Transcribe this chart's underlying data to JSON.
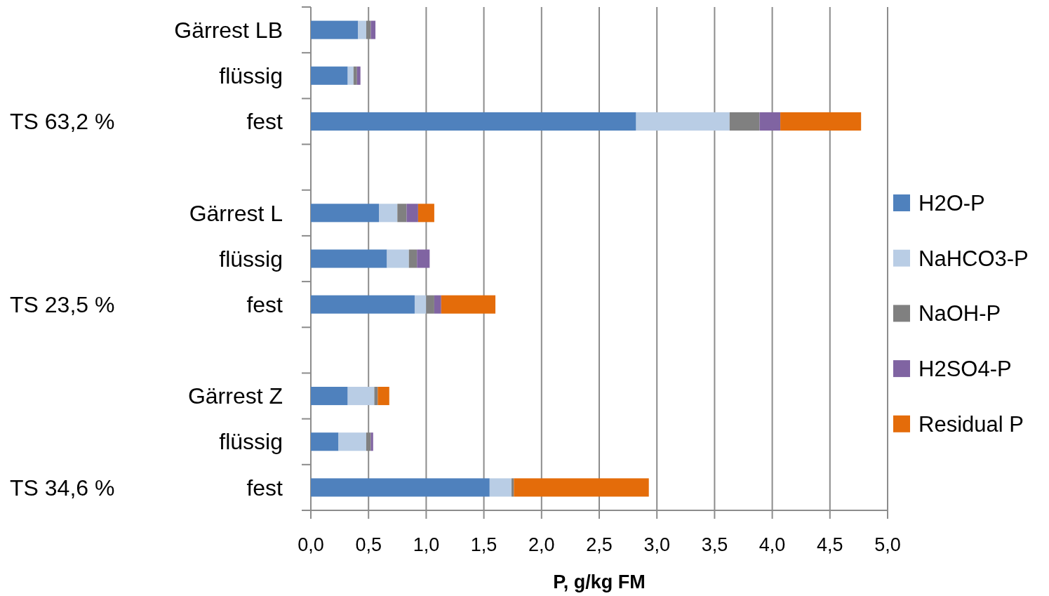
{
  "chart_data": {
    "type": "bar",
    "orientation": "horizontal",
    "stacked": true,
    "categories": [
      "Gärrest LB",
      "flüssig",
      "fest",
      null,
      "Gärrest L",
      "flüssig",
      "fest",
      null,
      "Gärrest Z",
      "flüssig",
      "fest"
    ],
    "series": [
      {
        "name": "H2O-P",
        "color": "#4f81bd",
        "values": [
          0.41,
          0.32,
          2.82,
          null,
          0.59,
          0.66,
          0.9,
          null,
          0.32,
          0.24,
          1.55
        ]
      },
      {
        "name": "NaHCO3-P",
        "color": "#b9cde5",
        "values": [
          0.07,
          0.05,
          0.81,
          null,
          0.16,
          0.19,
          0.1,
          null,
          0.23,
          0.24,
          0.19
        ]
      },
      {
        "name": "NaOH-P",
        "color": "#808080",
        "values": [
          0.04,
          0.03,
          0.26,
          null,
          0.08,
          0.07,
          0.07,
          null,
          0.03,
          0.04,
          0.02
        ]
      },
      {
        "name": "H2SO4-P",
        "color": "#8064a2",
        "values": [
          0.04,
          0.03,
          0.18,
          null,
          0.1,
          0.11,
          0.06,
          null,
          0,
          0.02,
          0
        ]
      },
      {
        "name": "Residual P",
        "color": "#e46c0a",
        "values": [
          0,
          0,
          0.7,
          null,
          0.14,
          0,
          0.47,
          null,
          0.1,
          0,
          1.17
        ]
      }
    ],
    "xlabel": "P, g/kg FM",
    "xlim": [
      0,
      5
    ],
    "xticks": [
      {
        "value": 0,
        "label": "0,0"
      },
      {
        "value": 0.5,
        "label": "0,5"
      },
      {
        "value": 1,
        "label": "1,0"
      },
      {
        "value": 1.5,
        "label": "1,5"
      },
      {
        "value": 2,
        "label": "2,0"
      },
      {
        "value": 2.5,
        "label": "2,5"
      },
      {
        "value": 3,
        "label": "3,0"
      },
      {
        "value": 3.5,
        "label": "3,5"
      },
      {
        "value": 4,
        "label": "4,0"
      },
      {
        "value": 4.5,
        "label": "4,5"
      },
      {
        "value": 5,
        "label": "5,0"
      }
    ],
    "grid": "x",
    "legend": "right",
    "annotations": [
      "TS  63,2 %",
      "TS  23,5 %",
      "TS  34,6 %"
    ]
  }
}
